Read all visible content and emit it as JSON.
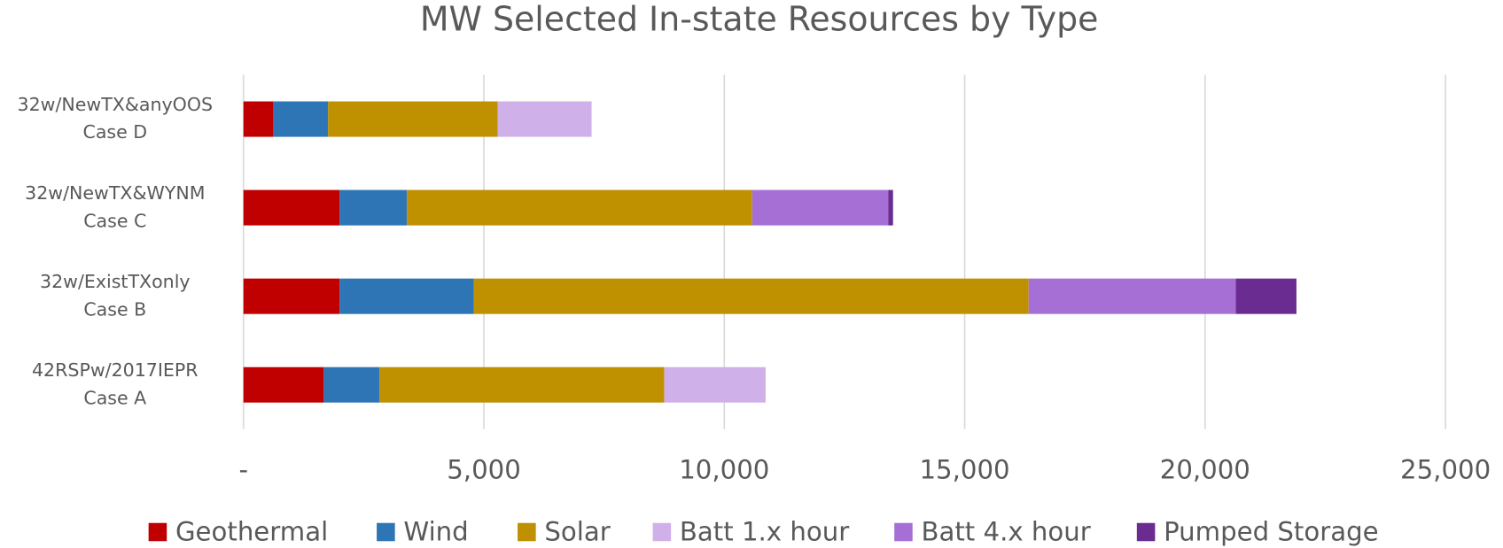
{
  "chart_data": {
    "type": "stacked-bar-horizontal",
    "title": "MW Selected In-state Resources by Type",
    "categories": [
      [
        "32w/NewTX&anyOOS",
        "Case D"
      ],
      [
        "32w/NewTX&WYNM",
        "Case C"
      ],
      [
        "32w/ExistTXonly",
        "Case B"
      ],
      [
        "42RSPw/2017IEPR",
        "Case A"
      ]
    ],
    "series": [
      {
        "name": "Geothermal",
        "color": "#c00000",
        "values": [
          620,
          2000,
          2000,
          1670
        ]
      },
      {
        "name": "Wind",
        "color": "#2e75b6",
        "values": [
          1140,
          1400,
          2790,
          1160
        ]
      },
      {
        "name": "Solar",
        "color": "#bf9000",
        "values": [
          3530,
          7180,
          11540,
          5920
        ]
      },
      {
        "name": "Batt 1.x hour",
        "color": "#cfb0e8",
        "values": [
          1950,
          0,
          0,
          2110
        ]
      },
      {
        "name": "Batt 4.x hour",
        "color": "#a56fd6",
        "values": [
          0,
          2830,
          4310,
          0
        ]
      },
      {
        "name": "Pumped Storage",
        "color": "#6a2c91",
        "values": [
          0,
          100,
          1260,
          0
        ]
      }
    ],
    "xlim": [
      0,
      25000
    ],
    "xticks": [
      {
        "value": 0,
        "label": "-"
      },
      {
        "value": 5000,
        "label": "5,000"
      },
      {
        "value": 10000,
        "label": "10,000"
      },
      {
        "value": 15000,
        "label": "15,000"
      },
      {
        "value": 20000,
        "label": "20,000"
      },
      {
        "value": 25000,
        "label": "25,000"
      }
    ],
    "grid": true,
    "legend": "bottom"
  }
}
